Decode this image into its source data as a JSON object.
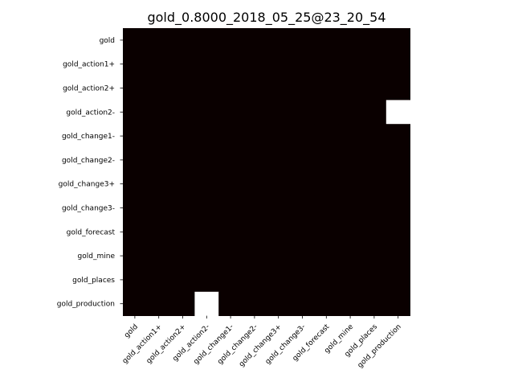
{
  "chart_data": {
    "type": "heatmap",
    "title": "gold_0.8000_2018_05_25@23_20_54",
    "xlabel": "",
    "ylabel": "",
    "x_categories": [
      "gold",
      "gold_action1+",
      "gold_action2+",
      "gold_action2-",
      "gold_change1-",
      "gold_change2-",
      "gold_change3+",
      "gold_change3-",
      "gold_forecast",
      "gold_mine",
      "gold_places",
      "gold_production"
    ],
    "y_categories": [
      "gold",
      "gold_action1+",
      "gold_action2+",
      "gold_action2-",
      "gold_change1-",
      "gold_change2-",
      "gold_change3+",
      "gold_change3-",
      "gold_forecast",
      "gold_mine",
      "gold_places",
      "gold_production"
    ],
    "values": [
      [
        0,
        0,
        0,
        0,
        0,
        0,
        0,
        0,
        0,
        0,
        0,
        0
      ],
      [
        0,
        0,
        0,
        0,
        0,
        0,
        0,
        0,
        0,
        0,
        0,
        0
      ],
      [
        0,
        0,
        0,
        0,
        0,
        0,
        0,
        0,
        0,
        0,
        0,
        0
      ],
      [
        0,
        0,
        0,
        0,
        0,
        0,
        0,
        0,
        0,
        0,
        0,
        1
      ],
      [
        0,
        0,
        0,
        0,
        0,
        0,
        0,
        0,
        0,
        0,
        0,
        0
      ],
      [
        0,
        0,
        0,
        0,
        0,
        0,
        0,
        0,
        0,
        0,
        0,
        0
      ],
      [
        0,
        0,
        0,
        0,
        0,
        0,
        0,
        0,
        0,
        0,
        0,
        0
      ],
      [
        0,
        0,
        0,
        0,
        0,
        0,
        0,
        0,
        0,
        0,
        0,
        0
      ],
      [
        0,
        0,
        0,
        0,
        0,
        0,
        0,
        0,
        0,
        0,
        0,
        0
      ],
      [
        0,
        0,
        0,
        0,
        0,
        0,
        0,
        0,
        0,
        0,
        0,
        0
      ],
      [
        0,
        0,
        0,
        0,
        0,
        0,
        0,
        0,
        0,
        0,
        0,
        0
      ],
      [
        0,
        0,
        0,
        1,
        0,
        0,
        0,
        0,
        0,
        0,
        0,
        0
      ]
    ],
    "vlim": [
      0,
      1
    ],
    "colormap": "hot",
    "color_low": "#0a0000",
    "color_high": "#ffffff",
    "grid": false,
    "legend": "none"
  }
}
